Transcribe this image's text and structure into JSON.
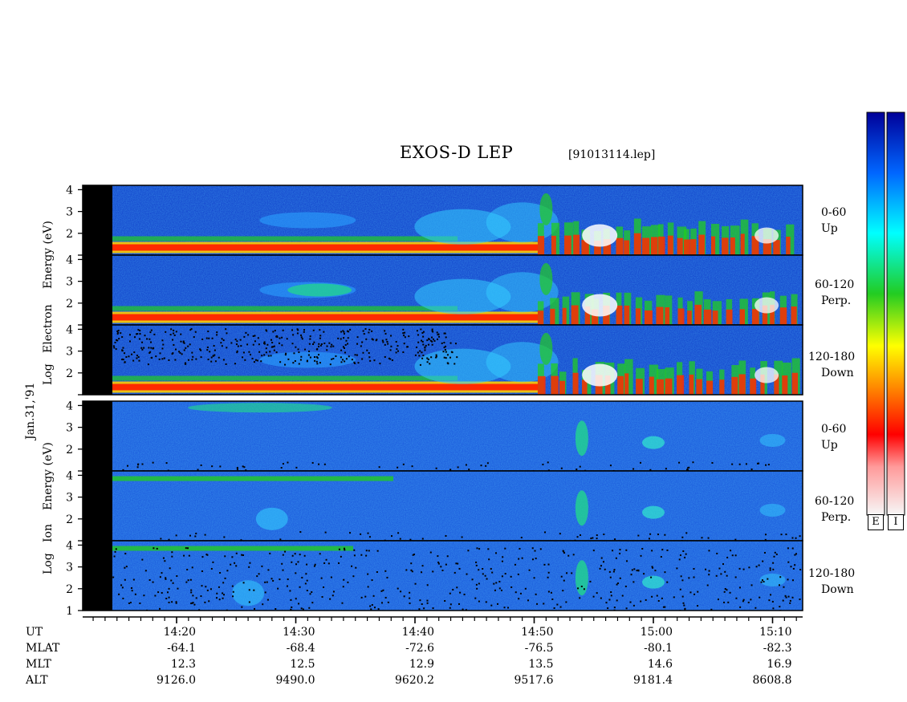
{
  "chart_data": {
    "type": "heatmap",
    "title": "EXOS-D LEP",
    "file_label": "[91013114.lep]",
    "date_label": "Jan.31,'91",
    "y_scale": "log",
    "electron_axis_label": [
      "Log",
      "Electron",
      "Energy (eV)"
    ],
    "ion_axis_label": [
      "Log",
      "Ion",
      "Energy (eV)"
    ],
    "y_ticks": [
      "4",
      "3",
      "2"
    ],
    "bottom_panel_y_ticks": [
      "4",
      "3",
      "2",
      "1"
    ],
    "panels": [
      {
        "species": "Electron",
        "pitch_range": "0-60",
        "direction": "Up",
        "y_range": [
          1,
          4.2
        ]
      },
      {
        "species": "Electron",
        "pitch_range": "60-120",
        "direction": "Perp.",
        "y_range": [
          1,
          4.2
        ]
      },
      {
        "species": "Electron",
        "pitch_range": "120-180",
        "direction": "Down",
        "y_range": [
          1,
          4.2
        ]
      },
      {
        "species": "Ion",
        "pitch_range": "0-60",
        "direction": "Up",
        "y_range": [
          1,
          4.2
        ]
      },
      {
        "species": "Ion",
        "pitch_range": "60-120",
        "direction": "Perp.",
        "y_range": [
          1,
          4.2
        ]
      },
      {
        "species": "Ion",
        "pitch_range": "120-180",
        "direction": "Down",
        "y_range": [
          1,
          4.2
        ]
      }
    ],
    "x_range": [
      "14:13",
      "15:12"
    ],
    "ephemeris_rows": [
      "UT",
      "MLAT",
      "MLT",
      "ALT"
    ],
    "ephemeris": [
      {
        "UT": "14:20",
        "MLAT": "-64.1",
        "MLT": "12.3",
        "ALT": "9126.0"
      },
      {
        "UT": "14:30",
        "MLAT": "-68.4",
        "MLT": "12.5",
        "ALT": "9490.0"
      },
      {
        "UT": "14:40",
        "MLAT": "-72.6",
        "MLT": "12.9",
        "ALT": "9620.2"
      },
      {
        "UT": "14:50",
        "MLAT": "-76.5",
        "MLT": "13.5",
        "ALT": "9517.6"
      },
      {
        "UT": "15:00",
        "MLAT": "-80.1",
        "MLT": "14.6",
        "ALT": "9181.4"
      },
      {
        "UT": "15:10",
        "MLAT": "-82.3",
        "MLT": "16.9",
        "ALT": "8608.8"
      }
    ],
    "colorbars": [
      {
        "label": "E"
      },
      {
        "label": "I"
      }
    ],
    "colormap": [
      "#f7f7f7",
      "#ff0000",
      "#ff8c00",
      "#ffff00",
      "#22cc22",
      "#00ffff",
      "#0066ff",
      "#000099"
    ]
  }
}
